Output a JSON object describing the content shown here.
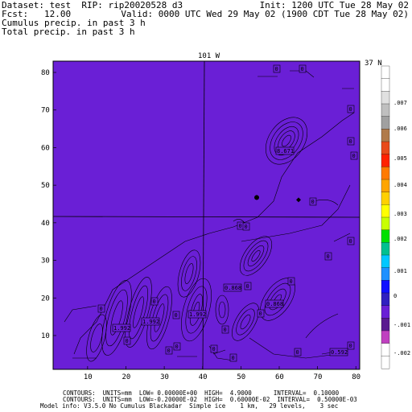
{
  "header": {
    "line1_left": "Dataset: test  RIP: rip20020528 d3",
    "line1_right": "Init: 1200 UTC Tue 28 May 02",
    "line2_left": "Fcst:   12.00",
    "line2_right": "Valid: 0000 UTC Wed 29 May 02 (1900 CDT Tue 28 May 02)",
    "line3": "Cumulus precip. in past 3 h",
    "line4": "Total precip. in past 3 h"
  },
  "map": {
    "top_label": "101 W",
    "right_label": "37 N",
    "x_ticks": [
      "10",
      "20",
      "30",
      "40",
      "50",
      "60",
      "70",
      "80"
    ],
    "y_ticks": [
      "10",
      "20",
      "30",
      "40",
      "50",
      "60",
      "70",
      "80"
    ],
    "colors": {
      "fill": "#6a1fd6",
      "stipple": "#7a38e0",
      "line": "#000000"
    },
    "contour_labels": [
      "0",
      "0",
      "0",
      "0",
      "0",
      "0",
      "0",
      "0",
      "0",
      "0",
      "0",
      "0",
      "0",
      "0",
      "0",
      "0",
      "0",
      "0",
      "0",
      "0",
      "0",
      "0",
      "0",
      "0"
    ],
    "max_labels": [
      "8.671",
      "1.992",
      "1.992",
      "1.992",
      "0.868",
      "0.592",
      "0.868"
    ]
  },
  "colorbar": {
    "labels": [
      ".007",
      ".006",
      ".005",
      ".004",
      ".003",
      ".002",
      ".001",
      "0",
      "-.001",
      "-.002"
    ],
    "colors": [
      "#ffffff",
      "#ffffff",
      "#e0e0e0",
      "#bfbfbf",
      "#a0a0a0",
      "#b07a4a",
      "#e84a1a",
      "#ff2200",
      "#ff7a00",
      "#ffa500",
      "#ffd000",
      "#ffff00",
      "#c8ff00",
      "#00e000",
      "#00c090",
      "#00c8ff",
      "#1e90ff",
      "#1010ff",
      "#3020c0",
      "#6a1fd6",
      "#5a1a90",
      "#c040c0",
      "#ffffff",
      "#ffffff"
    ]
  },
  "footer": {
    "line1": "CONTOURS:  UNITS=mm  LOW= 0.00000E+00  HIGH=  4.9000      INTERVAL=  0.10000",
    "line2": "CONTOURS:  UNITS=mm  LOW=-0.20000E-02  HIGH=  0.60000E-02  INTERVAL=  0.50000E-03",
    "line3": "Model info: V3.5.0 No Cumulus Blackadar  Simple ice    1 km,   29 levels,    3 sec"
  }
}
